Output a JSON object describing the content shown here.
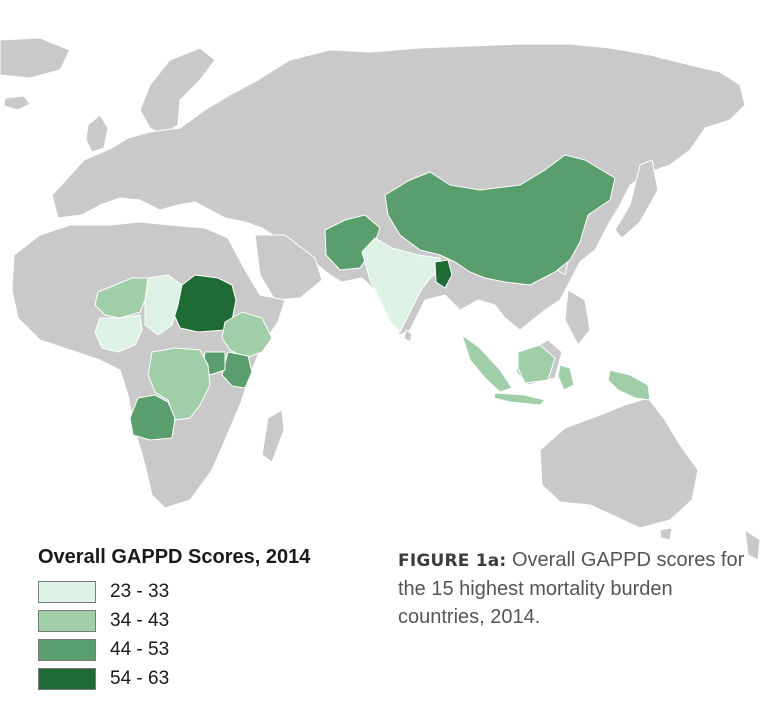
{
  "legend": {
    "title": "Overall GAPPD Scores, 2014",
    "classes": [
      {
        "label": "23 - 33",
        "color": "#ddf1e4"
      },
      {
        "label": "34 - 43",
        "color": "#9fcea9"
      },
      {
        "label": "44 - 53",
        "color": "#5a9e6d"
      },
      {
        "label": "54 - 63",
        "color": "#1f6b35"
      }
    ]
  },
  "caption": {
    "label": "FIGURE 1a:",
    "text": " Overall GAPPD scores for the 15 highest mortality burden countries, 2014."
  },
  "colors": {
    "land": "#c9c9c9",
    "background": "#ffffff",
    "borders": "#ffffff"
  },
  "highlighted_countries": [
    {
      "region": "pakistan-afghanistan",
      "class": 2
    },
    {
      "region": "india",
      "class": 0
    },
    {
      "region": "bangladesh",
      "class": 3
    },
    {
      "region": "china",
      "class": 2
    },
    {
      "region": "indonesia",
      "class": 1
    },
    {
      "region": "papua",
      "class": 1
    },
    {
      "region": "sudan",
      "class": 3
    },
    {
      "region": "chad",
      "class": 0
    },
    {
      "region": "niger",
      "class": 1
    },
    {
      "region": "nigeria",
      "class": 0
    },
    {
      "region": "ethiopia",
      "class": 1
    },
    {
      "region": "kenya",
      "class": 2
    },
    {
      "region": "uganda",
      "class": 2
    },
    {
      "region": "dr-congo",
      "class": 1
    },
    {
      "region": "angola",
      "class": 2
    }
  ]
}
